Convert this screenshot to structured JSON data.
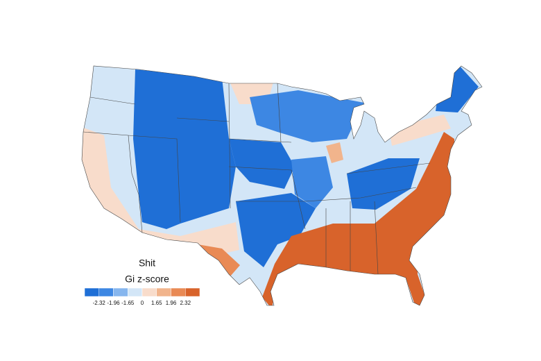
{
  "legend": {
    "title": "Shit",
    "subtitle": "Gi z-score",
    "breaks": [
      -2.32,
      -1.96,
      -1.65,
      0,
      1.65,
      1.96,
      2.32
    ],
    "colors": [
      "#1f6fd6",
      "#3d87e3",
      "#86b6ee",
      "#d3e6f7",
      "#f8dccb",
      "#f1b48c",
      "#e98a55",
      "#d8632b"
    ]
  }
}
